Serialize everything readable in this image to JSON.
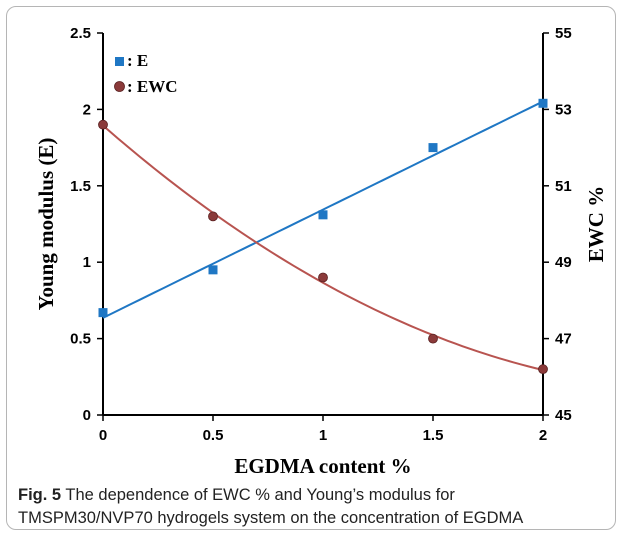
{
  "caption": {
    "label": "Fig. 5",
    "line1": "The dependence of EWC % and Young’s modulus for",
    "line2": "TMSPM30/NVP70 hydrogels system on the concentration of EGDMA"
  },
  "colors": {
    "E": "#1f77c4",
    "EWC": "#b85450",
    "EWC_marker": "#8b3a3a"
  },
  "chart_data": {
    "type": "scatter",
    "xlabel": "EGDMA content  %",
    "ylabel": "Young  modulus  (E)",
    "y2label": "EWC %",
    "xlim": [
      0,
      2
    ],
    "ylim": [
      0,
      2.5
    ],
    "y2lim": [
      45,
      55
    ],
    "xticks": [
      "0",
      "0.5",
      "1",
      "1.5",
      "2"
    ],
    "yticks": [
      "0",
      "0.5",
      "1",
      "1.5",
      "2",
      "2.5"
    ],
    "y2ticks": [
      "45",
      "47",
      "49",
      "51",
      "53",
      "55"
    ],
    "legend": [
      ": E",
      ": EWC"
    ],
    "legend_position": "top-left",
    "grid": false,
    "series": [
      {
        "name": "E",
        "axis": "left",
        "marker": "square",
        "x": [
          0,
          0.5,
          1,
          1.5,
          2
        ],
        "values": [
          0.67,
          0.95,
          1.31,
          1.75,
          2.04
        ],
        "fit": "linear"
      },
      {
        "name": "EWC",
        "axis": "right",
        "marker": "circle",
        "x": [
          0,
          0.5,
          1,
          1.5,
          2
        ],
        "values": [
          52.6,
          50.2,
          48.6,
          47.0,
          46.2
        ],
        "fit": "polynomial"
      }
    ]
  }
}
